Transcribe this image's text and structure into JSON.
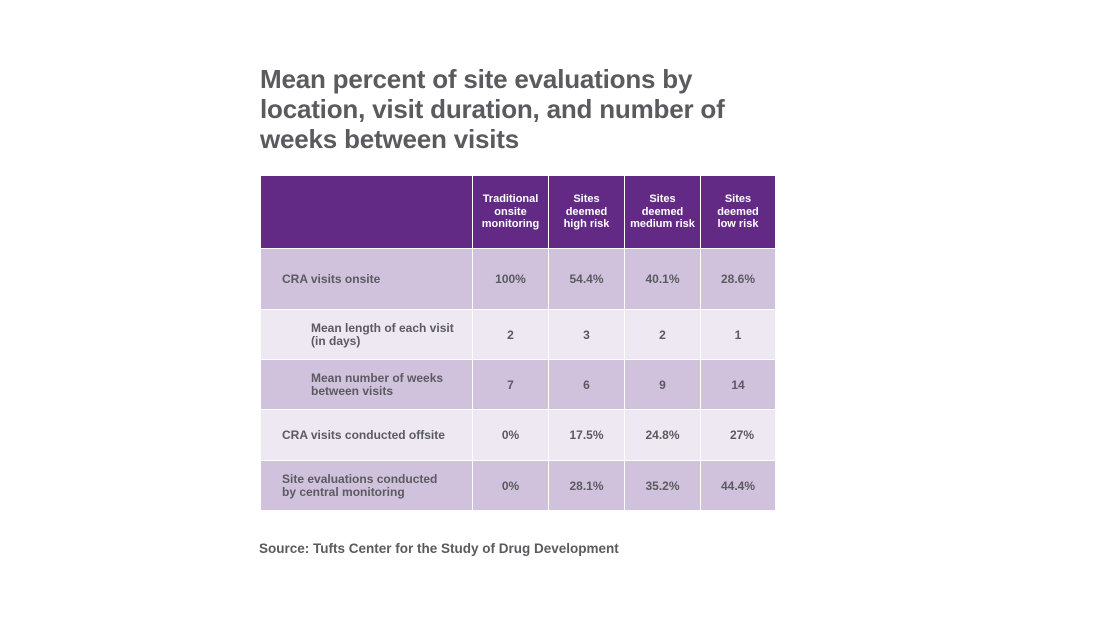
{
  "chart_data": {
    "type": "table",
    "title": "Mean percent of site evaluations by location, visit duration, and number of weeks between visits",
    "columns": [
      "",
      "Traditional\nonsite\nmonitoring",
      "Sites\ndeemed\nhigh risk",
      "Sites\ndeemed\nmedium risk",
      "Sites\ndeemed\nlow risk"
    ],
    "rows": [
      {
        "label": "CRA visits onsite",
        "values": [
          "100%",
          "54.4%",
          "40.1%",
          "28.6%"
        ]
      },
      {
        "label": "Mean length of each visit\n(in days)",
        "values": [
          "2",
          "3",
          "2",
          "1"
        ]
      },
      {
        "label": "Mean number of weeks\nbetween visits",
        "values": [
          "7",
          "6",
          "9",
          "14"
        ]
      },
      {
        "label": "CRA visits conducted offsite",
        "values": [
          "0%",
          "17.5%",
          "24.8%",
          "27%"
        ]
      },
      {
        "label": "Site evaluations conducted\nby central monitoring",
        "values": [
          "0%",
          "28.1%",
          "35.2%",
          "44.4%"
        ]
      }
    ],
    "source": "Source: Tufts Center for the Study of Drug Development"
  },
  "colors": {
    "header": "#622a85",
    "row_dark": "#d0c2dd",
    "row_light": "#ede8f2",
    "text": "#5a5a5f"
  }
}
